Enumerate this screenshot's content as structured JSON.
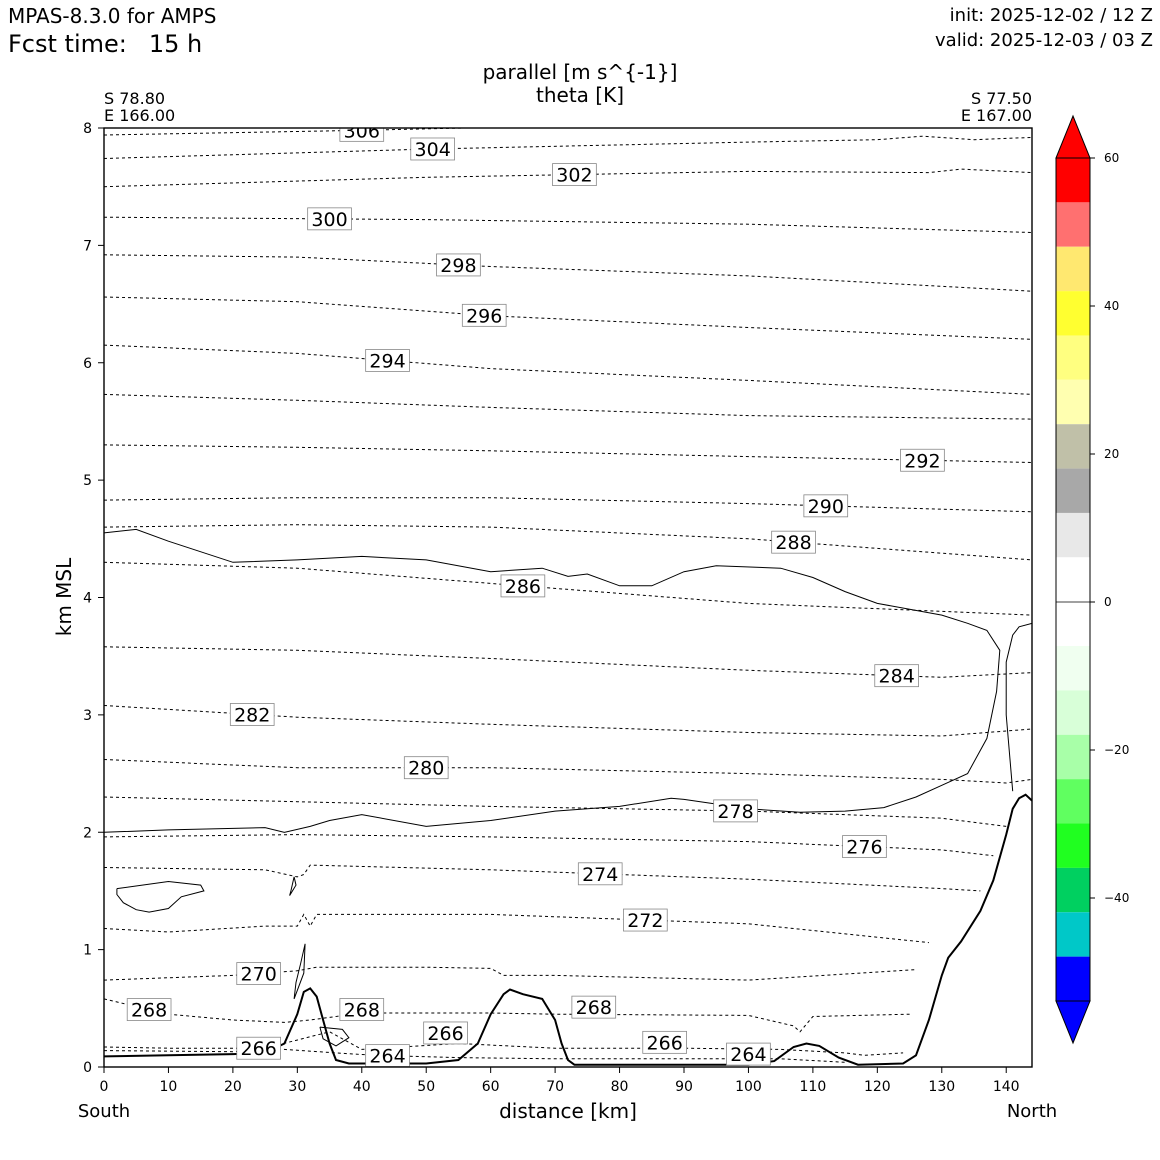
{
  "header": {
    "model": "MPAS-8.3.0 for AMPS",
    "fcst_label": "Fcst time:",
    "fcst_value": "15 h",
    "init": "init: 2025-12-02 / 12 Z",
    "valid": "valid: 2025-12-03 / 03 Z"
  },
  "titles": {
    "line1": "parallel [m s^{-1}]",
    "line2": "theta [K]"
  },
  "endpoints": {
    "left_lat": "S 78.80",
    "left_lon": "E 166.00",
    "right_lat": "S 77.50",
    "right_lon": "E 167.00"
  },
  "axes": {
    "xlabel": "distance [km]",
    "ylabel": "km MSL",
    "left_end": "South",
    "right_end": "North"
  },
  "chart_data": {
    "type": "contour",
    "x_range": [
      0,
      144
    ],
    "y_range": [
      0,
      8
    ],
    "x_ticks": [
      0,
      10,
      20,
      30,
      40,
      50,
      60,
      70,
      80,
      90,
      100,
      110,
      120,
      130,
      140
    ],
    "y_ticks": [
      0,
      1,
      2,
      3,
      4,
      5,
      6,
      7,
      8
    ],
    "colorbar": {
      "ticks": [
        60,
        40,
        20,
        0,
        -20,
        -40
      ],
      "colors": [
        "#ff0000",
        "#ff7070",
        "#ffe870",
        "#ffff30",
        "#ffff80",
        "#ffffb0",
        "#c0c0a8",
        "#a8a8a8",
        "#e8e8e8",
        "#ffffff",
        "#ffffff",
        "#f0fff0",
        "#d8ffd8",
        "#a8ffa8",
        "#60ff60",
        "#20ff20",
        "#00d060",
        "#00c8c8",
        "#0000ff"
      ],
      "top_arrow": "#ff0000",
      "bottom_arrow": "#0000ff"
    },
    "terrain": [
      [
        0,
        0.09
      ],
      [
        10,
        0.1
      ],
      [
        20,
        0.11
      ],
      [
        25,
        0.12
      ],
      [
        28,
        0.2
      ],
      [
        30,
        0.45
      ],
      [
        31,
        0.64
      ],
      [
        32,
        0.67
      ],
      [
        33,
        0.6
      ],
      [
        34,
        0.4
      ],
      [
        35,
        0.2
      ],
      [
        36,
        0.06
      ],
      [
        38,
        0.03
      ],
      [
        50,
        0.03
      ],
      [
        55,
        0.06
      ],
      [
        58,
        0.2
      ],
      [
        60,
        0.45
      ],
      [
        62,
        0.62
      ],
      [
        63,
        0.66
      ],
      [
        65,
        0.62
      ],
      [
        68,
        0.58
      ],
      [
        70,
        0.4
      ],
      [
        71,
        0.2
      ],
      [
        72,
        0.06
      ],
      [
        73,
        0.02
      ],
      [
        100,
        0.02
      ],
      [
        104,
        0.05
      ],
      [
        107,
        0.17
      ],
      [
        109,
        0.2
      ],
      [
        111,
        0.18
      ],
      [
        114,
        0.08
      ],
      [
        117,
        0.02
      ],
      [
        124,
        0.03
      ],
      [
        126,
        0.1
      ],
      [
        128,
        0.4
      ],
      [
        130,
        0.78
      ],
      [
        131,
        0.93
      ],
      [
        133,
        1.07
      ],
      [
        136,
        1.33
      ],
      [
        138,
        1.59
      ],
      [
        140,
        1.98
      ],
      [
        141,
        2.2
      ],
      [
        142,
        2.29
      ],
      [
        143,
        2.32
      ],
      [
        144,
        2.27
      ]
    ],
    "isentropes": [
      {
        "label": "306",
        "points": [
          [
            0,
            7.94
          ],
          [
            40,
            7.98
          ],
          [
            80,
            8.03
          ]
        ]
      },
      {
        "label": "304",
        "points": [
          [
            0,
            7.74
          ],
          [
            50,
            7.82
          ],
          [
            100,
            7.88
          ],
          [
            120,
            7.9
          ],
          [
            127,
            7.93
          ],
          [
            135,
            7.9
          ],
          [
            144,
            7.92
          ]
        ]
      },
      {
        "label": "302",
        "points": [
          [
            0,
            7.5
          ],
          [
            50,
            7.58
          ],
          [
            100,
            7.63
          ],
          [
            128,
            7.62
          ],
          [
            133,
            7.65
          ],
          [
            144,
            7.62
          ]
        ]
      },
      {
        "label": "300",
        "points": [
          [
            0,
            7.24
          ],
          [
            50,
            7.22
          ],
          [
            100,
            7.18
          ],
          [
            144,
            7.11
          ]
        ]
      },
      {
        "label": "298",
        "points": [
          [
            0,
            6.92
          ],
          [
            30,
            6.9
          ],
          [
            60,
            6.82
          ],
          [
            100,
            6.74
          ],
          [
            144,
            6.61
          ]
        ]
      },
      {
        "label": "296",
        "points": [
          [
            0,
            6.56
          ],
          [
            30,
            6.52
          ],
          [
            60,
            6.4
          ],
          [
            100,
            6.3
          ],
          [
            144,
            6.2
          ]
        ]
      },
      {
        "label": "294",
        "points": [
          [
            0,
            6.15
          ],
          [
            30,
            6.08
          ],
          [
            60,
            5.95
          ],
          [
            100,
            5.85
          ],
          [
            144,
            5.73
          ]
        ]
      },
      {
        "label": "",
        "points": [
          [
            0,
            5.73
          ],
          [
            30,
            5.68
          ],
          [
            60,
            5.62
          ],
          [
            100,
            5.55
          ],
          [
            144,
            5.52
          ]
        ]
      },
      {
        "label": "292",
        "points": [
          [
            0,
            5.3
          ],
          [
            30,
            5.28
          ],
          [
            60,
            5.25
          ],
          [
            100,
            5.2
          ],
          [
            144,
            5.15
          ]
        ]
      },
      {
        "label": "290",
        "points": [
          [
            0,
            4.83
          ],
          [
            30,
            4.85
          ],
          [
            60,
            4.85
          ],
          [
            100,
            4.8
          ],
          [
            144,
            4.73
          ]
        ]
      },
      {
        "label": "288",
        "points": [
          [
            0,
            4.6
          ],
          [
            30,
            4.62
          ],
          [
            60,
            4.6
          ],
          [
            100,
            4.5
          ],
          [
            144,
            4.32
          ]
        ]
      },
      {
        "label": "286",
        "points": [
          [
            0,
            4.3
          ],
          [
            30,
            4.25
          ],
          [
            60,
            4.12
          ],
          [
            100,
            3.95
          ],
          [
            144,
            3.85
          ]
        ]
      },
      {
        "label": "284",
        "points": [
          [
            0,
            3.58
          ],
          [
            30,
            3.55
          ],
          [
            60,
            3.48
          ],
          [
            100,
            3.38
          ],
          [
            130,
            3.32
          ],
          [
            144,
            3.36
          ]
        ]
      },
      {
        "label": "282",
        "points": [
          [
            0,
            3.08
          ],
          [
            30,
            2.98
          ],
          [
            60,
            2.92
          ],
          [
            100,
            2.85
          ],
          [
            130,
            2.82
          ],
          [
            144,
            2.88
          ]
        ]
      },
      {
        "label": "280",
        "points": [
          [
            0,
            2.62
          ],
          [
            30,
            2.55
          ],
          [
            60,
            2.55
          ],
          [
            100,
            2.5
          ],
          [
            130,
            2.45
          ],
          [
            140,
            2.42
          ],
          [
            144,
            2.45
          ]
        ]
      },
      {
        "label": "278",
        "points": [
          [
            0,
            2.3
          ],
          [
            30,
            2.26
          ],
          [
            60,
            2.22
          ],
          [
            100,
            2.18
          ],
          [
            130,
            2.12
          ],
          [
            140,
            2.05
          ]
        ]
      },
      {
        "label": "276",
        "points": [
          [
            0,
            1.96
          ],
          [
            30,
            1.98
          ],
          [
            60,
            1.96
          ],
          [
            100,
            1.92
          ],
          [
            130,
            1.85
          ],
          [
            138,
            1.8
          ]
        ]
      },
      {
        "label": "274",
        "points": [
          [
            0,
            1.7
          ],
          [
            25,
            1.68
          ],
          [
            30,
            1.62
          ],
          [
            31,
            1.64
          ],
          [
            32,
            1.72
          ],
          [
            60,
            1.68
          ],
          [
            100,
            1.6
          ],
          [
            130,
            1.52
          ],
          [
            136,
            1.5
          ]
        ]
      },
      {
        "label": "272",
        "points": [
          [
            0,
            1.18
          ],
          [
            10,
            1.15
          ],
          [
            25,
            1.2
          ],
          [
            30,
            1.2
          ],
          [
            31,
            1.3
          ],
          [
            32,
            1.2
          ],
          [
            33,
            1.3
          ],
          [
            60,
            1.3
          ],
          [
            100,
            1.22
          ],
          [
            128,
            1.06
          ]
        ]
      },
      {
        "label": "270",
        "points": [
          [
            0,
            0.74
          ],
          [
            20,
            0.78
          ],
          [
            30,
            0.82
          ],
          [
            33,
            0.85
          ],
          [
            50,
            0.85
          ],
          [
            60,
            0.84
          ],
          [
            62,
            0.78
          ],
          [
            70,
            0.78
          ],
          [
            100,
            0.74
          ],
          [
            126,
            0.83
          ]
        ]
      },
      {
        "label": "268",
        "points": [
          [
            0,
            0.58
          ],
          [
            10,
            0.45
          ],
          [
            20,
            0.4
          ],
          [
            28,
            0.38
          ],
          [
            32,
            0.4
          ],
          [
            40,
            0.46
          ],
          [
            60,
            0.46
          ],
          [
            70,
            0.45
          ],
          [
            100,
            0.44
          ],
          [
            107,
            0.35
          ],
          [
            108,
            0.3
          ],
          [
            110,
            0.43
          ],
          [
            125,
            0.45
          ]
        ]
      },
      {
        "label": "266",
        "points": [
          [
            0,
            0.17
          ],
          [
            10,
            0.16
          ],
          [
            25,
            0.16
          ],
          [
            35,
            0.3
          ],
          [
            40,
            0.15
          ],
          [
            55,
            0.2
          ],
          [
            70,
            0.16
          ],
          [
            90,
            0.16
          ],
          [
            105,
            0.15
          ],
          [
            115,
            0.12
          ],
          [
            118,
            0.1
          ],
          [
            124,
            0.12
          ]
        ]
      },
      {
        "label": "264",
        "points": [
          [
            0,
            0.14
          ],
          [
            20,
            0.13
          ],
          [
            28,
            0.15
          ],
          [
            36,
            0.12
          ],
          [
            42,
            0.1
          ],
          [
            55,
            0.08
          ],
          [
            70,
            0.07
          ],
          [
            95,
            0.07
          ],
          [
            105,
            0.07
          ],
          [
            115,
            0.04
          ]
        ]
      }
    ],
    "zero_contours": [
      {
        "points": [
          [
            0,
            4.55
          ],
          [
            5,
            4.58
          ],
          [
            10,
            4.48
          ],
          [
            20,
            4.3
          ],
          [
            30,
            4.32
          ],
          [
            40,
            4.35
          ],
          [
            50,
            4.32
          ],
          [
            60,
            4.22
          ],
          [
            68,
            4.25
          ],
          [
            72,
            4.18
          ],
          [
            75,
            4.2
          ],
          [
            80,
            4.1
          ],
          [
            85,
            4.1
          ],
          [
            90,
            4.22
          ],
          [
            95,
            4.27
          ],
          [
            105,
            4.25
          ],
          [
            110,
            4.17
          ],
          [
            115,
            4.05
          ],
          [
            120,
            3.95
          ],
          [
            125,
            3.9
          ],
          [
            130,
            3.85
          ],
          [
            134,
            3.78
          ],
          [
            137,
            3.72
          ],
          [
            139,
            3.55
          ],
          [
            138.5,
            3.2
          ],
          [
            137,
            2.8
          ],
          [
            134,
            2.5
          ],
          [
            130,
            2.4
          ],
          [
            126,
            2.3
          ],
          [
            121,
            2.21
          ],
          [
            115,
            2.18
          ],
          [
            108,
            2.17
          ],
          [
            100,
            2.2
          ],
          [
            90,
            2.28
          ],
          [
            88,
            2.29
          ],
          [
            80,
            2.22
          ],
          [
            70,
            2.18
          ],
          [
            60,
            2.1
          ],
          [
            50,
            2.05
          ],
          [
            40,
            2.15
          ],
          [
            35,
            2.1
          ],
          [
            32,
            2.05
          ],
          [
            28,
            2.0
          ],
          [
            25,
            2.04
          ],
          [
            10,
            2.02
          ],
          [
            0,
            2.0
          ]
        ]
      },
      {
        "points": [
          [
            141,
            2.35
          ],
          [
            140,
            3.0
          ],
          [
            140,
            3.45
          ],
          [
            141,
            3.68
          ],
          [
            142,
            3.75
          ],
          [
            144,
            3.78
          ]
        ]
      },
      {
        "points": [
          [
            2,
            1.52
          ],
          [
            10,
            1.58
          ],
          [
            15,
            1.55
          ],
          [
            15.5,
            1.5
          ],
          [
            12,
            1.45
          ],
          [
            10,
            1.35
          ],
          [
            7,
            1.32
          ],
          [
            5,
            1.34
          ],
          [
            3,
            1.4
          ],
          [
            2,
            1.47
          ],
          [
            2,
            1.52
          ]
        ]
      },
      {
        "points": [
          [
            29.5,
            0.58
          ],
          [
            31,
            0.8
          ],
          [
            31.2,
            1.05
          ],
          [
            30.5,
            0.88
          ],
          [
            29.8,
            0.72
          ],
          [
            29.5,
            0.58
          ]
        ]
      },
      {
        "points": [
          [
            28.8,
            1.46
          ],
          [
            29.8,
            1.55
          ],
          [
            29.5,
            1.62
          ],
          [
            29,
            1.5
          ],
          [
            28.8,
            1.46
          ]
        ]
      },
      {
        "points": [
          [
            33.5,
            0.34
          ],
          [
            37,
            0.32
          ],
          [
            38,
            0.25
          ],
          [
            36,
            0.18
          ],
          [
            34,
            0.24
          ],
          [
            33.5,
            0.34
          ]
        ]
      }
    ]
  }
}
